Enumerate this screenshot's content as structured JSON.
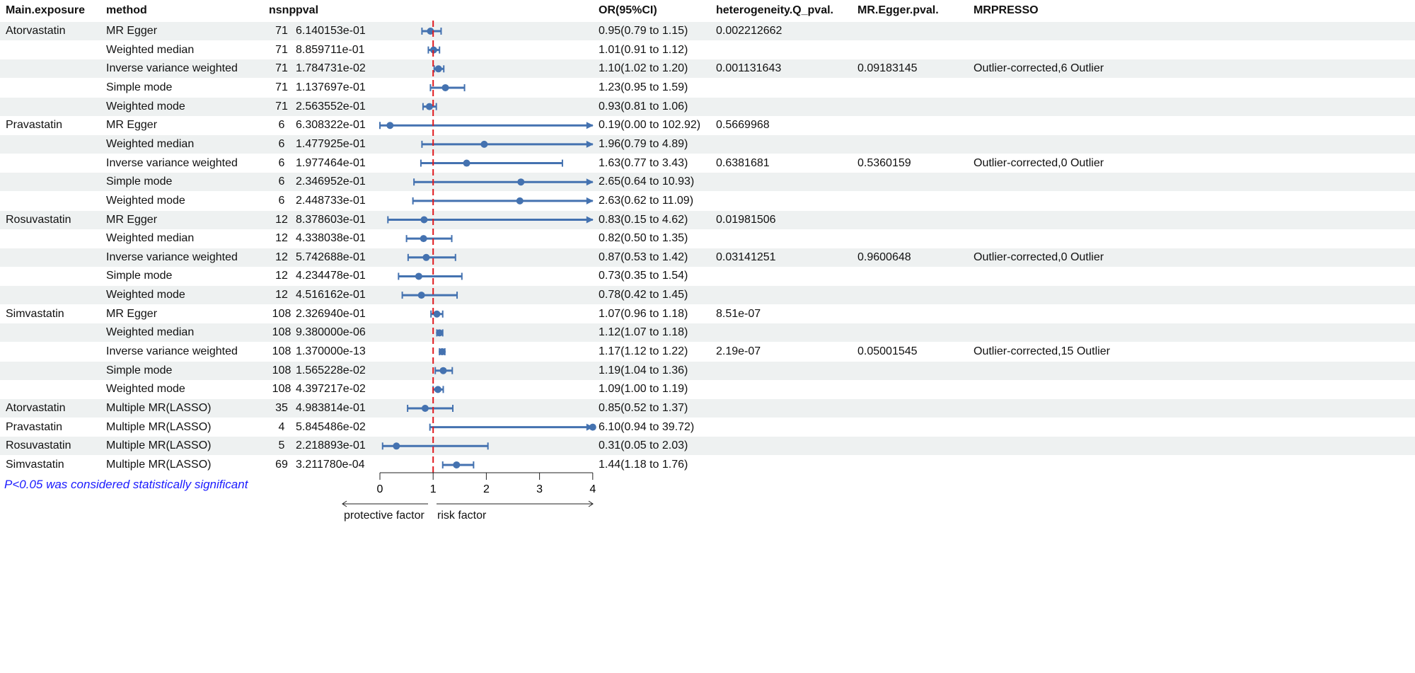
{
  "headers": {
    "exposure": "Main.exposure",
    "method": "method",
    "nsnp": "nsnp",
    "pval": "pval",
    "or": "OR(95%CI)",
    "het": "heterogeneity.Q_pval.",
    "egger": "MR.Egger.pval.",
    "presso": "MRPRESSO"
  },
  "note": "P<0.05 was considered statistically significant",
  "axis_labels": {
    "left": "protective factor",
    "right": "risk factor"
  },
  "colors": {
    "point": "#4472b0",
    "ref_line": "#e0191e",
    "stripe": "#eef1f1",
    "note": "#1a1aff"
  },
  "chart_data": {
    "type": "forest",
    "xlim": [
      0,
      4
    ],
    "xticks": [
      "0",
      "1",
      "2",
      "3",
      "4"
    ],
    "reference": 1,
    "rows": [
      {
        "exposure": "Atorvastatin",
        "method": "MR Egger",
        "nsnp": "71",
        "pval": "6.140153e-01",
        "or": 0.95,
        "lo": 0.79,
        "hi": 1.15,
        "or_text": "0.95(0.79 to 1.15)",
        "het": "0.002212662",
        "egger": "",
        "presso": ""
      },
      {
        "exposure": "",
        "method": "Weighted median",
        "nsnp": "71",
        "pval": "8.859711e-01",
        "or": 1.01,
        "lo": 0.91,
        "hi": 1.12,
        "or_text": "1.01(0.91 to 1.12)",
        "het": "",
        "egger": "",
        "presso": ""
      },
      {
        "exposure": "",
        "method": "Inverse variance weighted",
        "nsnp": "71",
        "pval": "1.784731e-02",
        "or": 1.1,
        "lo": 1.02,
        "hi": 1.2,
        "or_text": "1.10(1.02 to 1.20)",
        "het": "0.001131643",
        "egger": "0.09183145",
        "presso": "Outlier-corrected,6 Outlier"
      },
      {
        "exposure": "",
        "method": "Simple mode",
        "nsnp": "71",
        "pval": "1.137697e-01",
        "or": 1.23,
        "lo": 0.95,
        "hi": 1.59,
        "or_text": "1.23(0.95 to 1.59)",
        "het": "",
        "egger": "",
        "presso": ""
      },
      {
        "exposure": "",
        "method": "Weighted mode",
        "nsnp": "71",
        "pval": "2.563552e-01",
        "or": 0.93,
        "lo": 0.81,
        "hi": 1.06,
        "or_text": "0.93(0.81 to 1.06)",
        "het": "",
        "egger": "",
        "presso": ""
      },
      {
        "exposure": "Pravastatin",
        "method": "MR Egger",
        "nsnp": "6",
        "pval": "6.308322e-01",
        "or": 0.19,
        "lo": 0.0,
        "hi": 102.92,
        "or_text": "0.19(0.00 to 102.92)",
        "het": "0.5669968",
        "egger": "",
        "presso": ""
      },
      {
        "exposure": "",
        "method": "Weighted median",
        "nsnp": "6",
        "pval": "1.477925e-01",
        "or": 1.96,
        "lo": 0.79,
        "hi": 4.89,
        "or_text": "1.96(0.79 to 4.89)",
        "het": "",
        "egger": "",
        "presso": ""
      },
      {
        "exposure": "",
        "method": "Inverse variance weighted",
        "nsnp": "6",
        "pval": "1.977464e-01",
        "or": 1.63,
        "lo": 0.77,
        "hi": 3.43,
        "or_text": "1.63(0.77 to 3.43)",
        "het": "0.6381681",
        "egger": "0.5360159",
        "presso": "Outlier-corrected,0 Outlier"
      },
      {
        "exposure": "",
        "method": "Simple mode",
        "nsnp": "6",
        "pval": "2.346952e-01",
        "or": 2.65,
        "lo": 0.64,
        "hi": 10.93,
        "or_text": "2.65(0.64 to 10.93)",
        "het": "",
        "egger": "",
        "presso": ""
      },
      {
        "exposure": "",
        "method": "Weighted mode",
        "nsnp": "6",
        "pval": "2.448733e-01",
        "or": 2.63,
        "lo": 0.62,
        "hi": 11.09,
        "or_text": "2.63(0.62 to 11.09)",
        "het": "",
        "egger": "",
        "presso": ""
      },
      {
        "exposure": "Rosuvastatin",
        "method": "MR Egger",
        "nsnp": "12",
        "pval": "8.378603e-01",
        "or": 0.83,
        "lo": 0.15,
        "hi": 4.62,
        "or_text": "0.83(0.15 to 4.62)",
        "het": "0.01981506",
        "egger": "",
        "presso": ""
      },
      {
        "exposure": "",
        "method": "Weighted median",
        "nsnp": "12",
        "pval": "4.338038e-01",
        "or": 0.82,
        "lo": 0.5,
        "hi": 1.35,
        "or_text": "0.82(0.50 to 1.35)",
        "het": "",
        "egger": "",
        "presso": ""
      },
      {
        "exposure": "",
        "method": "Inverse variance weighted",
        "nsnp": "12",
        "pval": "5.742688e-01",
        "or": 0.87,
        "lo": 0.53,
        "hi": 1.42,
        "or_text": "0.87(0.53 to 1.42)",
        "het": "0.03141251",
        "egger": "0.9600648",
        "presso": "Outlier-corrected,0 Outlier"
      },
      {
        "exposure": "",
        "method": "Simple mode",
        "nsnp": "12",
        "pval": "4.234478e-01",
        "or": 0.73,
        "lo": 0.35,
        "hi": 1.54,
        "or_text": "0.73(0.35 to 1.54)",
        "het": "",
        "egger": "",
        "presso": ""
      },
      {
        "exposure": "",
        "method": "Weighted mode",
        "nsnp": "12",
        "pval": "4.516162e-01",
        "or": 0.78,
        "lo": 0.42,
        "hi": 1.45,
        "or_text": "0.78(0.42 to 1.45)",
        "het": "",
        "egger": "",
        "presso": ""
      },
      {
        "exposure": "Simvastatin",
        "method": "MR Egger",
        "nsnp": "108",
        "pval": "2.326940e-01",
        "or": 1.07,
        "lo": 0.96,
        "hi": 1.18,
        "or_text": "1.07(0.96 to 1.18)",
        "het": "8.51e-07",
        "egger": "",
        "presso": ""
      },
      {
        "exposure": "",
        "method": "Weighted median",
        "nsnp": "108",
        "pval": "9.380000e-06",
        "or": 1.12,
        "lo": 1.07,
        "hi": 1.18,
        "or_text": "1.12(1.07 to 1.18)",
        "het": "",
        "egger": "",
        "presso": ""
      },
      {
        "exposure": "",
        "method": "Inverse variance weighted",
        "nsnp": "108",
        "pval": "1.370000e-13",
        "or": 1.17,
        "lo": 1.12,
        "hi": 1.22,
        "or_text": "1.17(1.12 to 1.22)",
        "het": "2.19e-07",
        "egger": "0.05001545",
        "presso": "Outlier-corrected,15 Outlier"
      },
      {
        "exposure": "",
        "method": "Simple mode",
        "nsnp": "108",
        "pval": "1.565228e-02",
        "or": 1.19,
        "lo": 1.04,
        "hi": 1.36,
        "or_text": "1.19(1.04 to 1.36)",
        "het": "",
        "egger": "",
        "presso": ""
      },
      {
        "exposure": "",
        "method": "Weighted mode",
        "nsnp": "108",
        "pval": "4.397217e-02",
        "or": 1.09,
        "lo": 1.0,
        "hi": 1.19,
        "or_text": "1.09(1.00 to 1.19)",
        "het": "",
        "egger": "",
        "presso": ""
      },
      {
        "exposure": "Atorvastatin",
        "method": "Multiple MR(LASSO)",
        "nsnp": "35",
        "pval": "4.983814e-01",
        "or": 0.85,
        "lo": 0.52,
        "hi": 1.37,
        "or_text": "0.85(0.52 to 1.37)",
        "het": "",
        "egger": "",
        "presso": ""
      },
      {
        "exposure": "Pravastatin",
        "method": "Multiple MR(LASSO)",
        "nsnp": "4",
        "pval": "5.845486e-02",
        "or": 6.1,
        "lo": 0.94,
        "hi": 39.72,
        "or_text": "6.10(0.94 to 39.72)",
        "het": "",
        "egger": "",
        "presso": ""
      },
      {
        "exposure": "Rosuvastatin",
        "method": "Multiple MR(LASSO)",
        "nsnp": "5",
        "pval": "2.218893e-01",
        "or": 0.31,
        "lo": 0.05,
        "hi": 2.03,
        "or_text": "0.31(0.05 to 2.03)",
        "het": "",
        "egger": "",
        "presso": ""
      },
      {
        "exposure": "Simvastatin",
        "method": "Multiple MR(LASSO)",
        "nsnp": "69",
        "pval": "3.211780e-04",
        "or": 1.44,
        "lo": 1.18,
        "hi": 1.76,
        "or_text": "1.44(1.18 to 1.76)",
        "het": "",
        "egger": "",
        "presso": ""
      }
    ]
  }
}
